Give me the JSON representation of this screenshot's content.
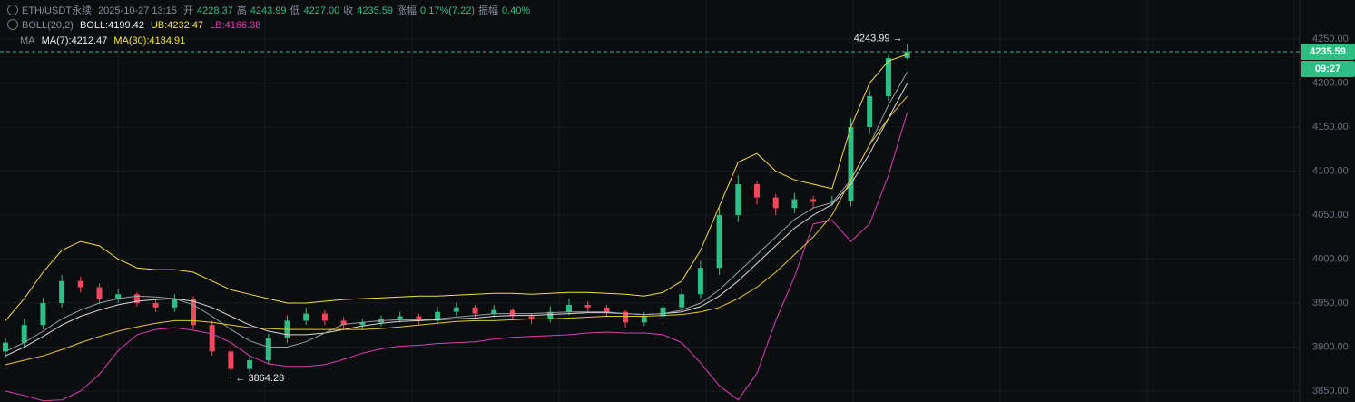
{
  "header": {
    "symbol": "ETH/USDT永续",
    "time": "2025-10-27 13:15",
    "fields": [
      {
        "label": "开",
        "value": "4228.37"
      },
      {
        "label": "高",
        "value": "4243.99"
      },
      {
        "label": "低",
        "value": "4227.00"
      },
      {
        "label": "收",
        "value": "4235.59"
      },
      {
        "label": "涨幅",
        "value": "0.17%(7.22)"
      },
      {
        "label": "振幅",
        "value": "0.40%"
      }
    ],
    "boll": {
      "name": "BOLL(20,2)",
      "mid": "BOLL:4199.42",
      "ub": "UB:4232.47",
      "lb": "LB:4166.38"
    },
    "ma": {
      "name": "MA",
      "ma7": "MA(7):4212.47",
      "ma30": "MA(30):4184.91"
    }
  },
  "chart_data": {
    "type": "candlestick",
    "ylim": [
      3837.6,
      4294.3
    ],
    "yticks": [
      {
        "value": 3850,
        "label": "3850.00"
      },
      {
        "value": 3900,
        "label": "3900.00"
      },
      {
        "value": 3950,
        "label": "3950.00"
      },
      {
        "value": 4000,
        "label": "4000.00"
      },
      {
        "value": 4050,
        "label": "4050.00"
      },
      {
        "value": 4100,
        "label": "4100.00"
      },
      {
        "value": 4150,
        "label": "4150.00"
      },
      {
        "value": 4200,
        "label": "4200.00"
      },
      {
        "value": 4250,
        "label": "4250.00"
      }
    ],
    "grid": true,
    "up_color": "#2ebd85",
    "down_color": "#f6465d",
    "open": [
      3895,
      3905,
      3925,
      3950,
      3975,
      3968,
      3955,
      3960,
      3950,
      3945,
      3955,
      3925,
      3895,
      3875,
      3885,
      3910,
      3930,
      3938,
      3930,
      3925,
      3928,
      3932,
      3935,
      3930,
      3940,
      3945,
      3938,
      3942,
      3935,
      3932,
      3940,
      3948,
      3945,
      3940,
      3928,
      3935,
      3945,
      3960,
      3990,
      4050,
      4085,
      4070,
      4058,
      4068,
      4065,
      4066,
      4150,
      4185,
      4228.37
    ],
    "high": [
      3910,
      3932,
      3956,
      3982,
      3980,
      3972,
      3966,
      3962,
      3954,
      3960,
      3958,
      3930,
      3900,
      3890,
      3915,
      3936,
      3945,
      3942,
      3934,
      3932,
      3936,
      3940,
      3938,
      3946,
      3950,
      3948,
      3948,
      3944,
      3938,
      3946,
      3955,
      3952,
      3948,
      3942,
      3940,
      3950,
      3966,
      3998,
      4058,
      4095,
      4088,
      4074,
      4075,
      4072,
      4072,
      4160,
      4192,
      4232,
      4243.99
    ],
    "low": [
      3888,
      3900,
      3920,
      3945,
      3962,
      3950,
      3950,
      3946,
      3940,
      3940,
      3920,
      3890,
      3864.28,
      3870,
      3880,
      3905,
      3925,
      3925,
      3920,
      3920,
      3924,
      3928,
      3926,
      3926,
      3935,
      3932,
      3934,
      3930,
      3926,
      3928,
      3936,
      3940,
      3935,
      3922,
      3924,
      3930,
      3940,
      3955,
      3982,
      4042,
      4062,
      4050,
      4052,
      4058,
      4060,
      4060,
      4142,
      4180,
      4227
    ],
    "close": [
      3905,
      3925,
      3950,
      3975,
      3968,
      3955,
      3960,
      3950,
      3945,
      3955,
      3925,
      3895,
      3875,
      3885,
      3910,
      3930,
      3938,
      3930,
      3925,
      3928,
      3932,
      3935,
      3930,
      3940,
      3945,
      3938,
      3942,
      3935,
      3932,
      3940,
      3948,
      3945,
      3940,
      3928,
      3935,
      3945,
      3960,
      3990,
      4050,
      4085,
      4070,
      4058,
      4068,
      4065,
      4066,
      4150,
      4185,
      4228.37,
      4235.59
    ],
    "lines": [
      {
        "color": "#f0e046",
        "values": [
          3930,
          3955,
          3985,
          4010,
          4020,
          4015,
          4000,
          3990,
          3988,
          3988,
          3985,
          3975,
          3965,
          3960,
          3955,
          3950,
          3950,
          3952,
          3954,
          3955,
          3956,
          3957,
          3958,
          3958,
          3959,
          3960,
          3961,
          3961,
          3960,
          3961,
          3962,
          3962,
          3961,
          3960,
          3958,
          3962,
          3975,
          4010,
          4060,
          4110,
          4120,
          4100,
          4090,
          4085,
          4080,
          4150,
          4200,
          4225,
          4232.47
        ]
      },
      {
        "color": "#d9d9d9",
        "values": [
          3890,
          3900,
          3912,
          3925,
          3935,
          3942,
          3948,
          3952,
          3954,
          3955,
          3952,
          3945,
          3935,
          3925,
          3918,
          3914,
          3914,
          3916,
          3920,
          3924,
          3927,
          3929,
          3930,
          3931,
          3932,
          3933,
          3935,
          3936,
          3936,
          3937,
          3938,
          3939,
          3939,
          3938,
          3937,
          3938,
          3940,
          3946,
          3958,
          3975,
          3995,
          4015,
          4035,
          4050,
          4062,
          4085,
          4120,
          4160,
          4199.42
        ]
      },
      {
        "color": "#d63fb6",
        "values": [
          3850,
          3845,
          3839,
          3840,
          3850,
          3869,
          3896,
          3914,
          3920,
          3922,
          3919,
          3915,
          3905,
          3890,
          3881,
          3878,
          3878,
          3880,
          3886,
          3893,
          3898,
          3901,
          3902,
          3904,
          3905,
          3906,
          3909,
          3911,
          3912,
          3913,
          3914,
          3916,
          3917,
          3916,
          3916,
          3914,
          3905,
          3882,
          3856,
          3840,
          3870,
          3930,
          3980,
          4040,
          4044,
          4020,
          4040,
          4095,
          4166.38
        ]
      },
      {
        "color": "#9aa0a8",
        "values": [
          3895,
          3905,
          3918,
          3932,
          3942,
          3950,
          3955,
          3958,
          3957,
          3955,
          3948,
          3935,
          3920,
          3907,
          3900,
          3900,
          3906,
          3916,
          3926,
          3928,
          3930,
          3931,
          3931,
          3932,
          3934,
          3936,
          3938,
          3938,
          3938,
          3939,
          3940,
          3940,
          3940,
          3938,
          3937,
          3938,
          3942,
          3950,
          3965,
          3985,
          4005,
          4025,
          4045,
          4058,
          4064,
          4090,
          4130,
          4175,
          4212.47
        ]
      },
      {
        "color": "#e8c830",
        "values": [
          3880,
          3885,
          3890,
          3897,
          3905,
          3912,
          3918,
          3923,
          3927,
          3930,
          3930,
          3928,
          3925,
          3922,
          3921,
          3920,
          3920,
          3920,
          3920,
          3920,
          3921,
          3923,
          3925,
          3927,
          3929,
          3930,
          3930,
          3931,
          3932,
          3932,
          3933,
          3934,
          3935,
          3935,
          3935,
          3936,
          3937,
          3940,
          3945,
          3955,
          3968,
          3985,
          4005,
          4025,
          4050,
          4090,
          4130,
          4160,
          4184.91
        ]
      }
    ],
    "last_price": 4235.59,
    "countdown": "09:27",
    "annotations": [
      {
        "value": 4243.99,
        "label": "4243.99 →"
      },
      {
        "value": 3864.28,
        "label": "← 3864.28"
      }
    ]
  }
}
